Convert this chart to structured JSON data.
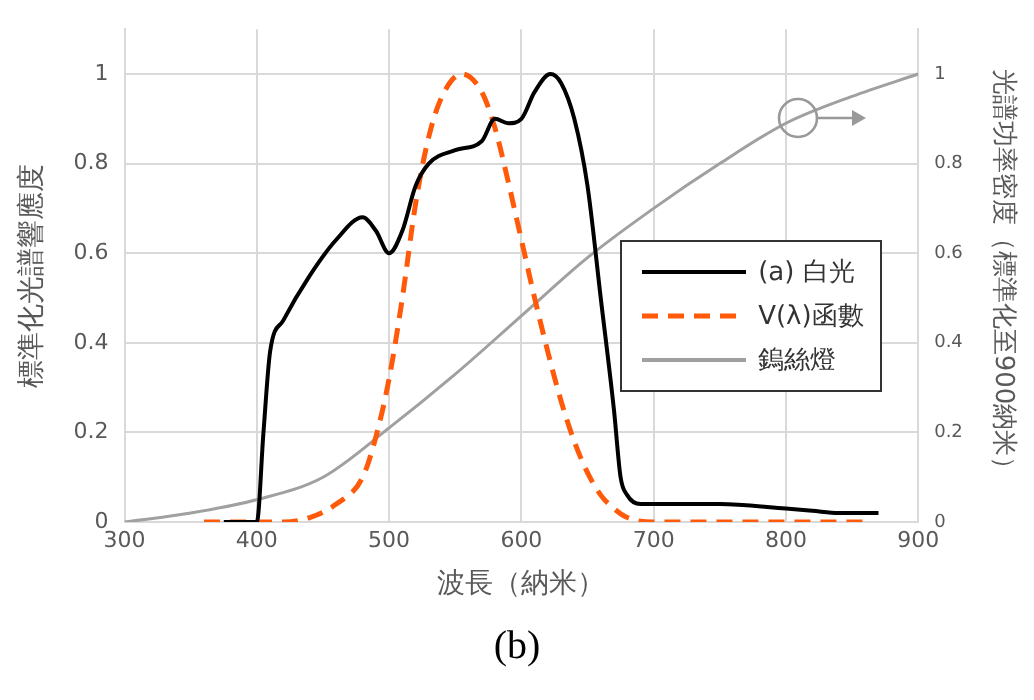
{
  "chart_data": {
    "type": "line",
    "xlabel": "波長（納米）",
    "ylabel": "標準化光譜響應度",
    "y2label": "光譜功率密度（標準化至900納米）",
    "xlim": [
      300,
      900
    ],
    "xticks": [
      300,
      400,
      500,
      600,
      700,
      800,
      900
    ],
    "ylim": [
      0,
      1.1
    ],
    "yticks": [
      0,
      0.2,
      0.4,
      0.6,
      0.8,
      1
    ],
    "y2lim": [
      0,
      1.1
    ],
    "y2ticks": [
      0,
      0.2,
      0.4,
      0.6,
      0.8,
      1
    ],
    "grid": true,
    "legend": "right",
    "marker": "none",
    "annotations": [
      "(b)"
    ],
    "series": [
      {
        "name": "(a) 白光",
        "color": "#000000",
        "line_style": "solid",
        "x": [
          375,
          400,
          405,
          410,
          420,
          440,
          460,
          480,
          490,
          500,
          510,
          520,
          530,
          550,
          570,
          580,
          590,
          600,
          610,
          622,
          630,
          640,
          650,
          660,
          670,
          675,
          680,
          690,
          700,
          750,
          800,
          820,
          840,
          870
        ],
        "values": [
          0,
          0,
          0.2,
          0.38,
          0.45,
          0.55,
          0.63,
          0.68,
          0.65,
          0.6,
          0.65,
          0.75,
          0.8,
          0.83,
          0.85,
          0.9,
          0.89,
          0.9,
          0.96,
          1.0,
          0.98,
          0.9,
          0.75,
          0.5,
          0.25,
          0.1,
          0.06,
          0.04,
          0.04,
          0.04,
          0.03,
          0.025,
          0.02,
          0.02
        ]
      },
      {
        "name": "V(λ)函數",
        "color": "#ff5a0a",
        "line_style": "dashed",
        "x": [
          360,
          420,
          440,
          460,
          480,
          490,
          500,
          510,
          520,
          530,
          540,
          555,
          570,
          580,
          590,
          600,
          610,
          620,
          630,
          640,
          650,
          660,
          670,
          680,
          700,
          860
        ],
        "values": [
          0,
          0,
          0.01,
          0.04,
          0.1,
          0.19,
          0.32,
          0.5,
          0.71,
          0.86,
          0.95,
          1.0,
          0.96,
          0.88,
          0.76,
          0.63,
          0.5,
          0.38,
          0.27,
          0.18,
          0.11,
          0.06,
          0.03,
          0.01,
          0,
          0
        ]
      },
      {
        "name": "鎢絲燈",
        "color": "#a0a0a0",
        "line_style": "solid",
        "axis": "y2",
        "x": [
          300,
          350,
          400,
          450,
          500,
          550,
          600,
          650,
          700,
          750,
          800,
          850,
          900
        ],
        "values": [
          0,
          0.02,
          0.05,
          0.1,
          0.21,
          0.33,
          0.46,
          0.59,
          0.7,
          0.8,
          0.89,
          0.95,
          1.0
        ]
      }
    ]
  }
}
